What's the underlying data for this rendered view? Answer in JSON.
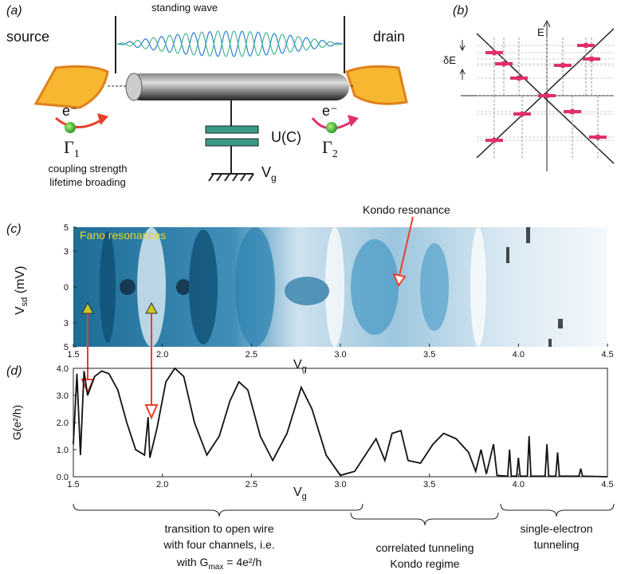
{
  "panel_a": {
    "label": "(a)",
    "standing_wave": "standing wave",
    "source": "source",
    "drain": "drain",
    "electrons": [
      "e⁻",
      "e⁻"
    ],
    "gamma_1": {
      "symbol": "Γ",
      "sub": "1"
    },
    "gamma_2": {
      "symbol": "Γ",
      "sub": "2"
    },
    "capacitor": "U(C)",
    "gate": {
      "symbol": "V",
      "sub": "g"
    },
    "coupling": [
      "coupling strength",
      "lifetime broading"
    ]
  },
  "panel_b": {
    "label": "(b)",
    "energy": "E",
    "spacing": "δE"
  },
  "chart_data": [
    {
      "type": "heatmap",
      "label": "(c)",
      "annotations": [
        "Fano resonances",
        "Kondo resonance"
      ],
      "x_label": {
        "symbol": "V",
        "sub": "g"
      },
      "y_label": {
        "symbol": "V",
        "sub": "sd",
        "unit": " (mV)"
      },
      "xlim": [
        1.5,
        4.5
      ],
      "xticks": [
        1.5,
        {
          "value": 2.0,
          "label": "2.0"
        },
        2.5,
        {
          "value": 3.0,
          "label": "3.0"
        },
        3.5,
        {
          "value": 4.0,
          "label": "4.0"
        },
        4.5
      ],
      "ylim": [
        -5,
        5
      ],
      "yticks": [
        5,
        3,
        0,
        {
          "value": -3,
          "label": "3"
        },
        {
          "value": -5,
          "label": "5"
        }
      ]
    },
    {
      "type": "line",
      "label": "(d)",
      "color": "#111111",
      "x_label": {
        "symbol": "V",
        "sub": "g"
      },
      "y_label": "G(e²/h)",
      "xlim": [
        1.5,
        4.5
      ],
      "xticks": [
        1.5,
        {
          "value": 2.0,
          "label": "2.0"
        },
        2.5,
        {
          "value": 3.0,
          "label": "3.0"
        },
        3.5,
        {
          "value": 4.0,
          "label": "4.0"
        },
        4.5
      ],
      "ylim": [
        0,
        4
      ],
      "yticks": [
        {
          "value": 0,
          "label": "0.0"
        },
        {
          "value": 1,
          "label": "1.0"
        },
        {
          "value": 2,
          "label": "2.0"
        },
        {
          "value": 3,
          "label": "3.0"
        },
        {
          "value": 4,
          "label": "4.0"
        }
      ],
      "x": [
        1.5,
        1.52,
        1.54,
        1.56,
        1.58,
        1.62,
        1.66,
        1.7,
        1.75,
        1.8,
        1.85,
        1.9,
        1.92,
        1.93,
        1.97,
        2.02,
        2.07,
        2.12,
        2.18,
        2.25,
        2.32,
        2.38,
        2.43,
        2.48,
        2.55,
        2.62,
        2.7,
        2.78,
        2.84,
        2.92,
        3.0,
        3.08,
        3.15,
        3.2,
        3.25,
        3.29,
        3.34,
        3.38,
        3.45,
        3.52,
        3.58,
        3.65,
        3.72,
        3.76,
        3.79,
        3.82,
        3.86,
        3.88,
        3.94,
        3.95,
        3.96,
        3.99,
        4.0,
        4.01,
        4.05,
        4.06,
        4.07,
        4.15,
        4.16,
        4.17,
        4.21,
        4.22,
        4.23,
        4.34,
        4.35,
        4.36,
        4.5
      ],
      "values": [
        1.2,
        3.8,
        0.8,
        3.9,
        3.0,
        3.7,
        3.9,
        3.8,
        3.2,
        2.0,
        1.0,
        0.8,
        2.2,
        0.7,
        1.8,
        3.5,
        4.0,
        3.7,
        2.0,
        0.8,
        1.5,
        2.8,
        3.5,
        3.2,
        1.5,
        0.6,
        1.6,
        3.3,
        2.5,
        0.8,
        0.05,
        0.2,
        0.9,
        1.4,
        0.6,
        1.6,
        1.7,
        0.6,
        0.5,
        1.2,
        1.6,
        1.4,
        0.9,
        0.2,
        1.0,
        0.1,
        1.2,
        0.05,
        0.02,
        1.0,
        0.02,
        0.02,
        0.7,
        0.02,
        0.02,
        1.5,
        0.02,
        0.02,
        1.2,
        0.02,
        0.02,
        0.9,
        0.02,
        0.02,
        0.3,
        0.02,
        0.0
      ]
    }
  ],
  "regimes": [
    {
      "lines": [
        "transition to open wire",
        "with four channels, i.e."
      ],
      "last": {
        "text": "with G",
        "sub": "max",
        "rest": " = 4e²/h"
      }
    },
    {
      "lines": [
        "correlated tunneling",
        "Kondo regime"
      ]
    },
    {
      "lines": [
        "single-electron",
        "tunneling"
      ]
    }
  ]
}
